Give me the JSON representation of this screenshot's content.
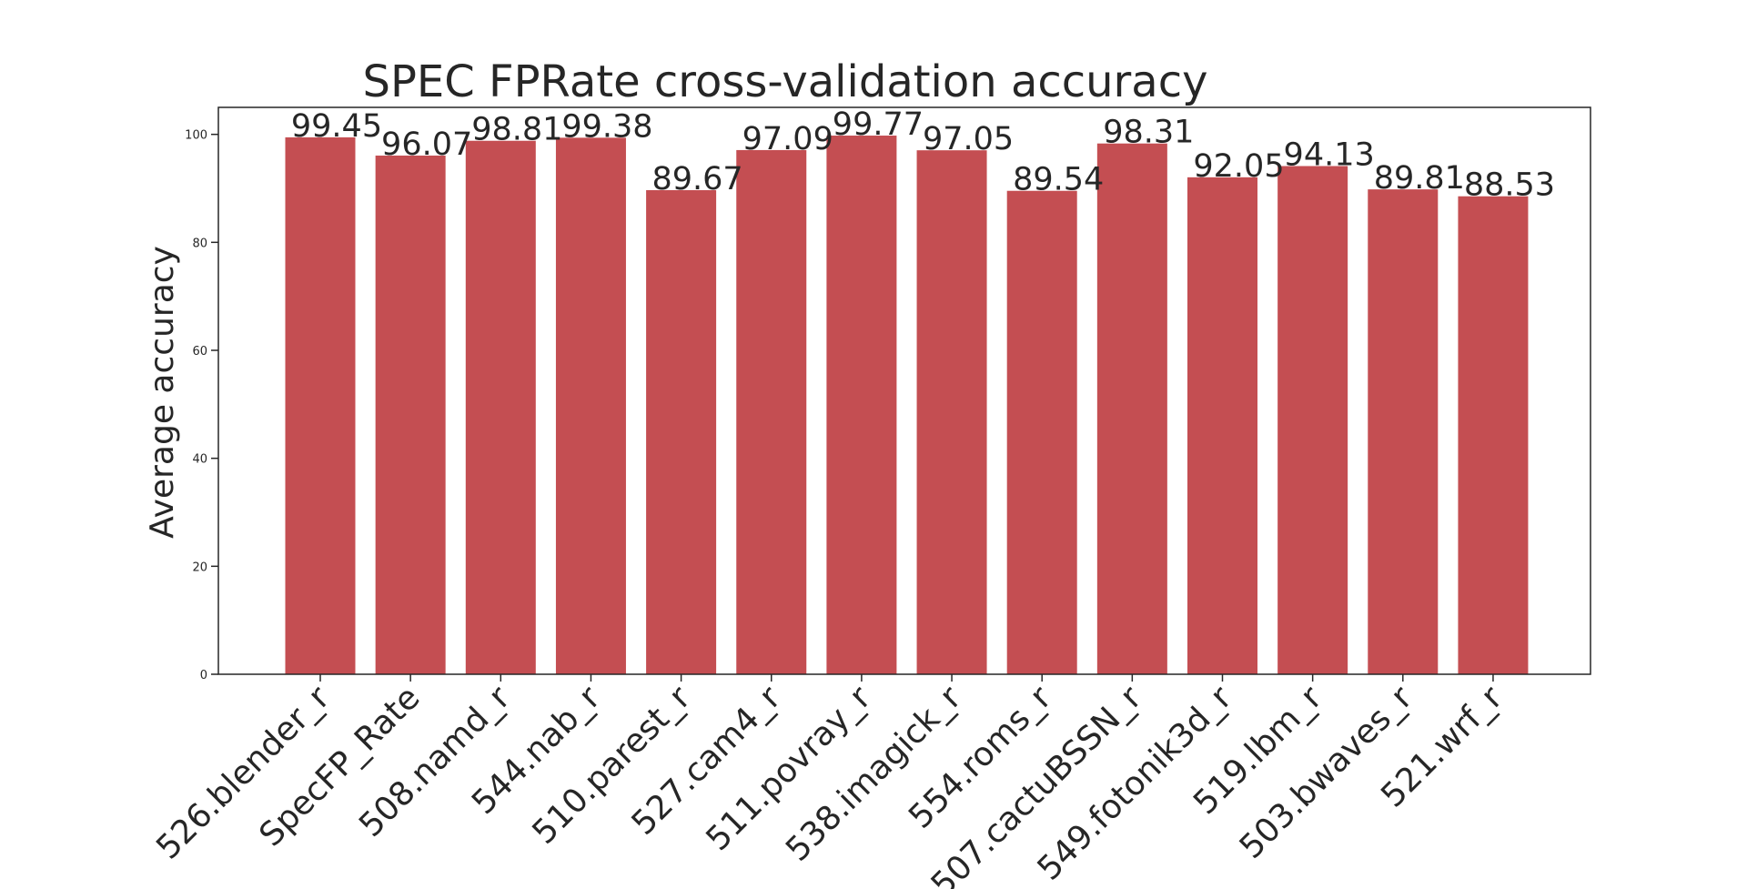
{
  "chart_data": {
    "type": "bar",
    "title": "SPEC FPRate cross-validation accuracy",
    "xlabel": "",
    "ylabel": "Average accuracy",
    "categories": [
      "526.blender_r",
      "SpecFP_Rate",
      "508.namd_r",
      "544.nab_r",
      "510.parest_r",
      "527.cam4_r",
      "511.povray_r",
      "538.imagick_r",
      "554.roms_r",
      "507.cactuBSSN_r",
      "549.fotonik3d_r",
      "519.lbm_r",
      "503.bwaves_r",
      "521.wrf_r"
    ],
    "values": [
      99.45,
      96.07,
      98.81,
      99.38,
      89.67,
      97.09,
      99.77,
      97.05,
      89.54,
      98.31,
      92.05,
      94.13,
      89.81,
      88.53
    ],
    "value_labels": [
      "99.45",
      "96.07",
      "98.81",
      "99.38",
      "89.67",
      "97.09",
      "99.77",
      "97.05",
      "89.54",
      "98.31",
      "92.05",
      "94.13",
      "89.81",
      "88.53"
    ],
    "ylim": [
      0,
      105
    ],
    "yticks": [
      0,
      20,
      40,
      60,
      80,
      100
    ],
    "ytick_labels": [
      "0",
      "20",
      "40",
      "60",
      "80",
      "100"
    ],
    "grid": false,
    "bar_color": "#c44e52",
    "text_color": "#262626",
    "axis_color": "#262626"
  }
}
